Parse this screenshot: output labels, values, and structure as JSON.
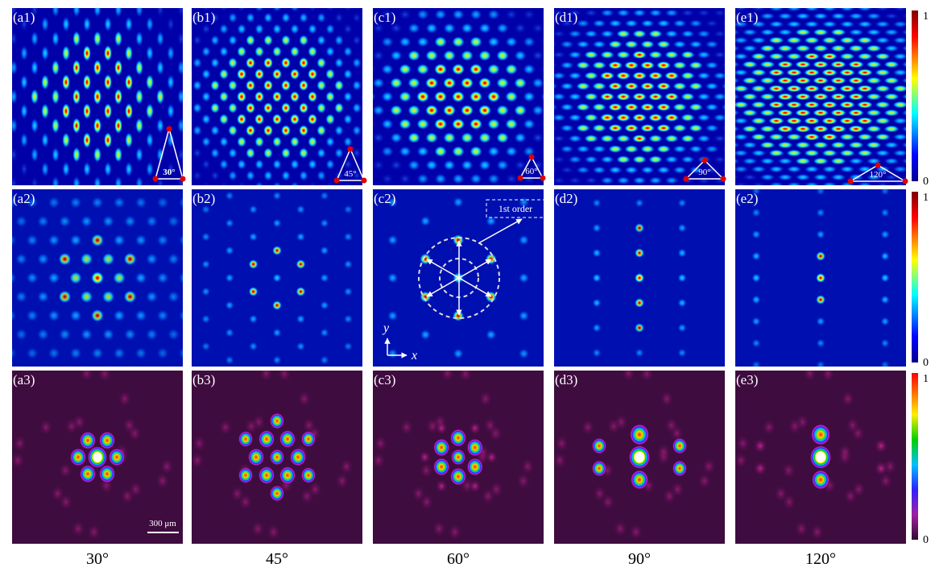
{
  "panels": [
    [
      "(a1)",
      "(b1)",
      "(c1)",
      "(d1)",
      "(e1)"
    ],
    [
      "(a2)",
      "(b2)",
      "(c2)",
      "(d2)",
      "(e2)"
    ],
    [
      "(a3)",
      "(b3)",
      "(c3)",
      "(d3)",
      "(e3)"
    ]
  ],
  "angle_insets": [
    "30°",
    "45°",
    "60°",
    "90°",
    "120°"
  ],
  "column_labels": [
    "30°",
    "45°",
    "60°",
    "90°",
    "120°"
  ],
  "annotations": {
    "first_order": "1st order",
    "y_axis": "y",
    "x_axis": "x",
    "scale_bar": "300 μm"
  },
  "colorbars": [
    {
      "max": 1,
      "min": 0
    },
    {
      "max": 1,
      "min": 0
    },
    {
      "max": 1,
      "min": 0
    }
  ]
}
